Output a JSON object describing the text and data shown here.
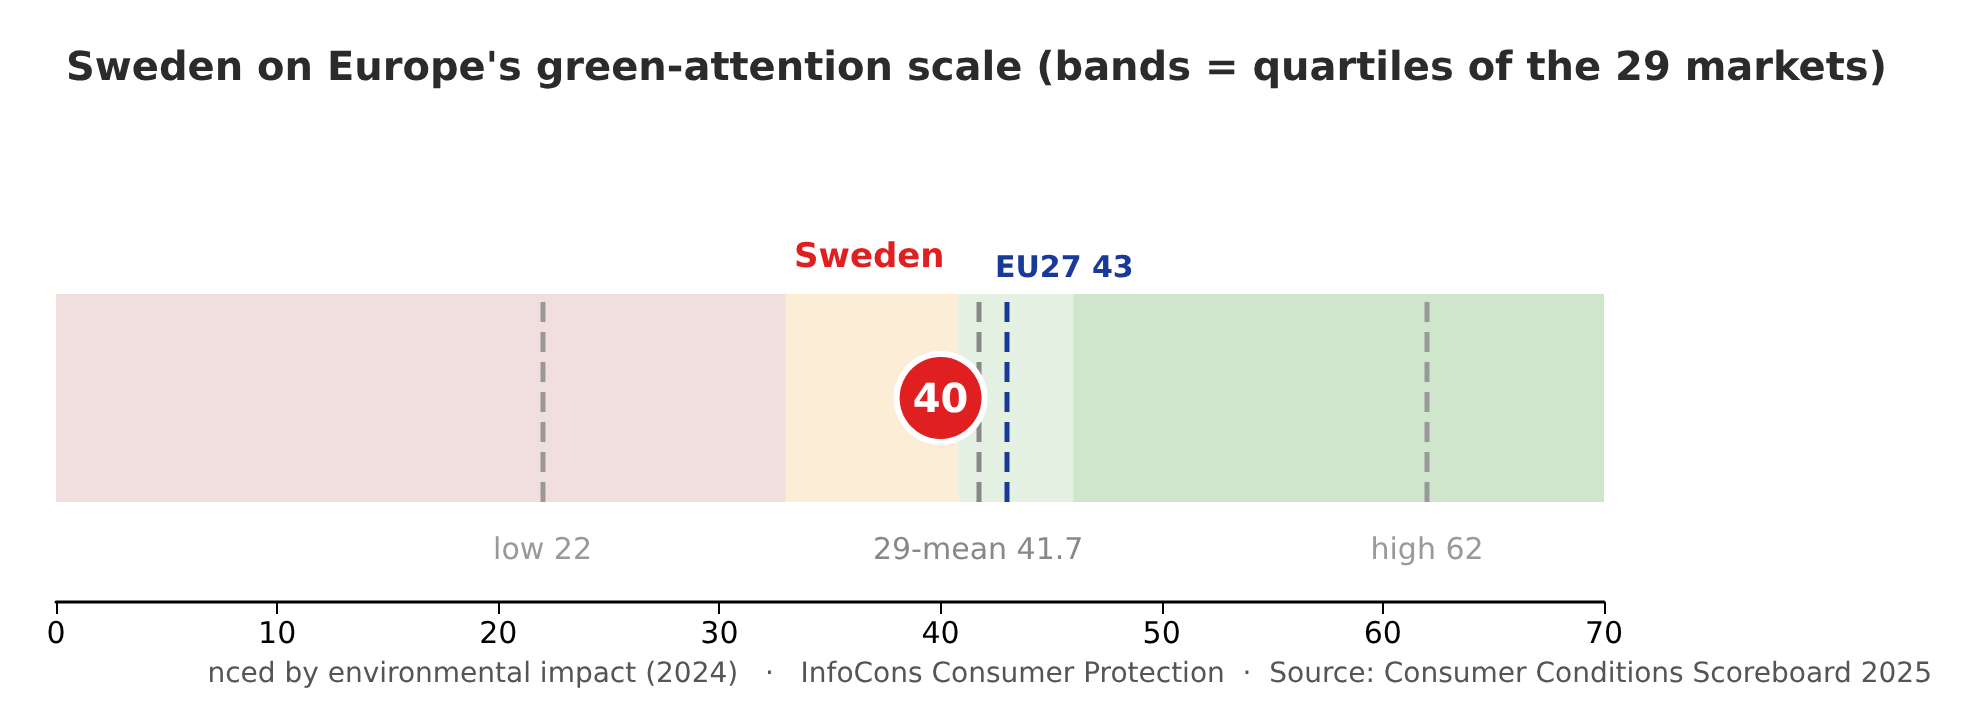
{
  "chart_data": {
    "type": "scatter",
    "title": "Sweden on Europe's green-attention scale (bands = quartiles of the 29 markets)",
    "orientation": "horizontal",
    "categories": [
      null
    ],
    "series": [
      {
        "name": "Sweden",
        "color": "#e02020",
        "values": [
          40
        ]
      }
    ],
    "data_labels": true,
    "marker": "circle",
    "xlim": [
      0,
      70
    ],
    "xticks": [
      0,
      10,
      20,
      30,
      40,
      50,
      60,
      70
    ],
    "bands": [
      {
        "axis": "x",
        "from": 0,
        "to": 33,
        "color": "#f1dede"
      },
      {
        "axis": "x",
        "from": 33,
        "to": 40.8,
        "color": "#fcedd6"
      },
      {
        "axis": "x",
        "from": 40.8,
        "to": 46,
        "color": "#e4f0e2"
      },
      {
        "axis": "x",
        "from": 46,
        "to": 70,
        "color": "#cfe6cc"
      }
    ],
    "ref_lines": [
      {
        "axis": "x",
        "value": 22,
        "label": "low 22",
        "color": "#999999",
        "line_style": "dashed"
      },
      {
        "axis": "x",
        "value": 41.7,
        "label": "29-mean 41.7",
        "color": "#888888",
        "line_style": "dashed"
      },
      {
        "axis": "x",
        "value": 62,
        "label": "high 62",
        "color": "#999999",
        "line_style": "dashed"
      },
      {
        "axis": "x",
        "value": 43,
        "label": "EU27 43",
        "color": "#1a3a9a",
        "line_style": "dashed"
      }
    ],
    "annotations": [
      "nced by environmental impact (2024)   ·   InfoCons Consumer Protection  ·  Source: Consumer Conditions Scoreboard 2025"
    ]
  }
}
